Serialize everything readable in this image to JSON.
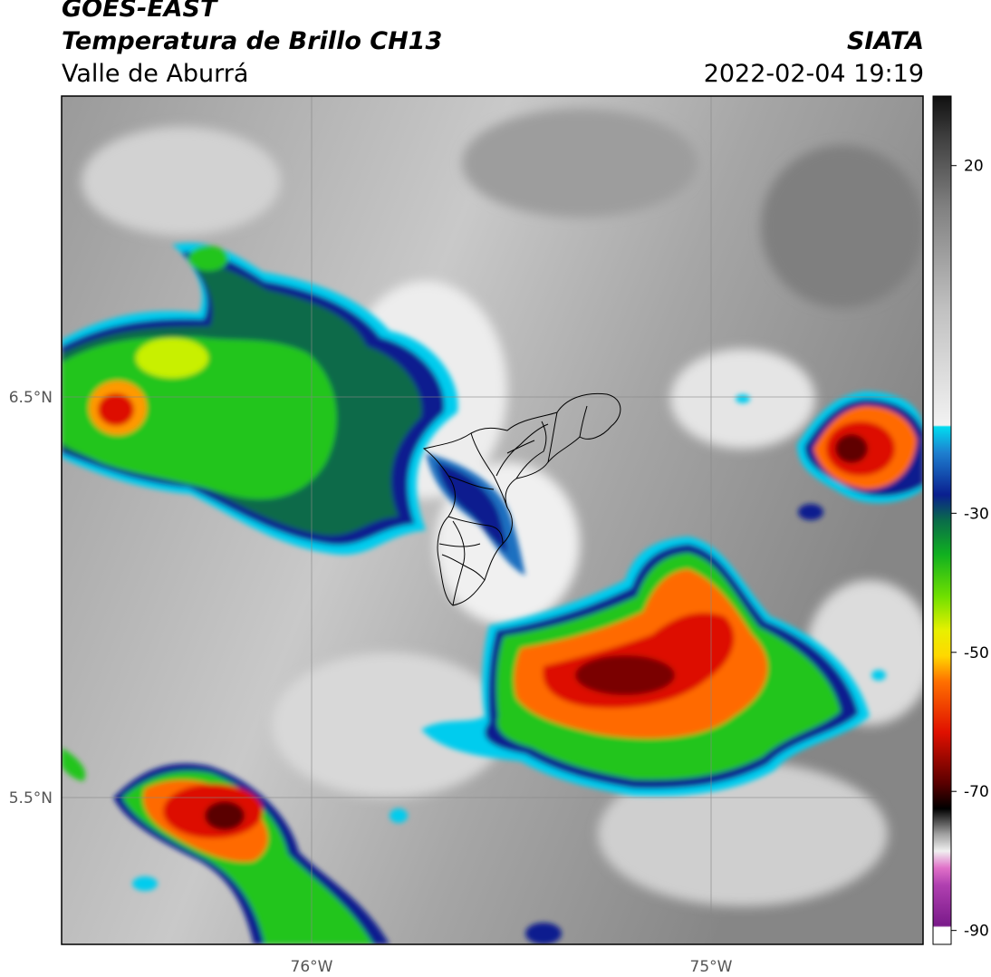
{
  "header": {
    "satellite": "GOES-EAST",
    "product": "Temperatura de Brillo CH13",
    "region": "Valle de Aburrá",
    "org": "SIATA",
    "datetime": "2022-02-04 19:19"
  },
  "map": {
    "lat_ticks": [
      {
        "label": "6.5°N",
        "value": 6.5
      },
      {
        "label": "5.5°N",
        "value": 5.5
      }
    ],
    "lon_ticks": [
      {
        "label": "76°W",
        "value": -76
      },
      {
        "label": "75°W",
        "value": -75
      }
    ],
    "extent": {
      "lon_min": -76.62,
      "lon_max": -74.47,
      "lat_min": 5.13,
      "lat_max": 7.25
    },
    "colors": {
      "warm_gray": "#8a8a8a",
      "light_gray": "#e6e6e6",
      "cyan": "#00ccee",
      "dark_blue": "#0a1f8f",
      "dark_green": "#0b6b4a",
      "green": "#22c51e",
      "yellow": "#f5ee00",
      "orange": "#ff6a00",
      "red": "#dd1100",
      "dark_red": "#6a0000"
    }
  },
  "colorbar": {
    "ticks": [
      {
        "label": "20",
        "value": 20
      },
      {
        "label": "-30",
        "value": -30
      },
      {
        "label": "-50",
        "value": -50
      },
      {
        "label": "-70",
        "value": -70
      },
      {
        "label": "-90",
        "value": -90
      }
    ],
    "range": [
      -92,
      30
    ]
  }
}
